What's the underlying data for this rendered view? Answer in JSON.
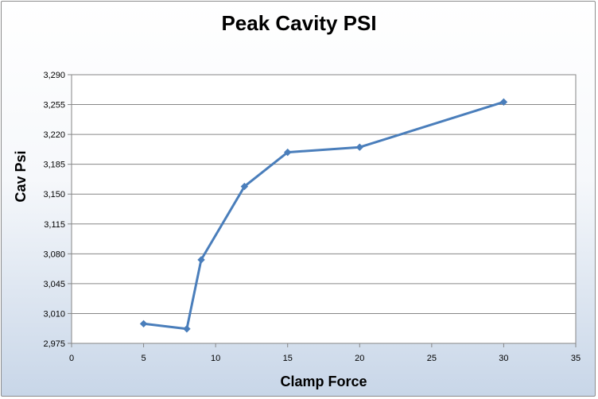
{
  "chart_data": {
    "type": "line",
    "title": "Peak Cavity PSI",
    "xlabel": "Clamp Force",
    "ylabel": "Cav Psi",
    "xlim": [
      0,
      35
    ],
    "ylim": [
      2975,
      3290
    ],
    "x_ticks": [
      "0",
      "5",
      "10",
      "15",
      "20",
      "25",
      "30",
      "35"
    ],
    "y_ticks": [
      "2,975",
      "3,010",
      "3,045",
      "3,080",
      "3,115",
      "3,150",
      "3,185",
      "3,220",
      "3,255",
      "3,290"
    ],
    "grid": "horizontal",
    "legend": "none",
    "series": [
      {
        "color": "#4a7ebb",
        "x": [
          5,
          8,
          9,
          12,
          15,
          20,
          30
        ],
        "y": [
          2998,
          2992,
          3073,
          3159,
          3199,
          3205,
          3258
        ]
      }
    ]
  }
}
